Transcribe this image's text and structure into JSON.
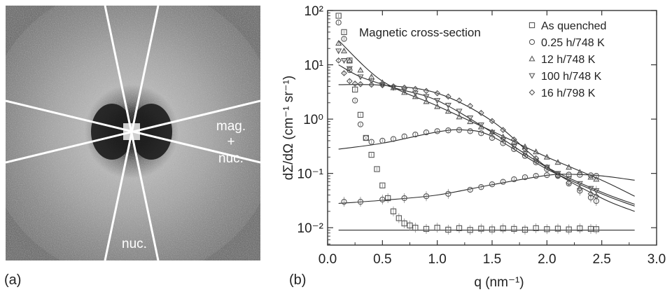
{
  "panel_a": {
    "label": "(a)",
    "sector_labels": {
      "mag_nuc_1": "mag.",
      "mag_nuc_2": "+",
      "mag_nuc_3": "nuc.",
      "nuc": "nuc."
    }
  },
  "panel_b": {
    "label": "(b)"
  },
  "chart_data": [
    {
      "type": "scatter",
      "panel": "b",
      "title": "Magnetic cross-section",
      "xlabel": "q (nm⁻¹)",
      "ylabel": "dΣ/dΩ (cm⁻¹ sr⁻¹)",
      "xlim": [
        0.0,
        3.0
      ],
      "ylim": [
        0.005,
        100
      ],
      "yscale": "log",
      "xticks": [
        "0.0",
        "0.5",
        "1.0",
        "1.5",
        "2.0",
        "2.5",
        "3.0"
      ],
      "yticks": [
        "10⁻²",
        "10⁻¹",
        "10⁰",
        "10¹",
        "10²"
      ],
      "legend_position": "top-right",
      "series": [
        {
          "name": "As quenched",
          "marker": "square",
          "points": [
            [
              0.1,
              80
            ],
            [
              0.15,
              40
            ],
            [
              0.2,
              12
            ],
            [
              0.25,
              3.5
            ],
            [
              0.3,
              1.2
            ],
            [
              0.35,
              0.45
            ],
            [
              0.4,
              0.22
            ],
            [
              0.45,
              0.12
            ],
            [
              0.5,
              0.06
            ],
            [
              0.55,
              0.035
            ],
            [
              0.6,
              0.02
            ],
            [
              0.65,
              0.015
            ],
            [
              0.7,
              0.012
            ],
            [
              0.75,
              0.011
            ],
            [
              0.8,
              0.01
            ],
            [
              0.9,
              0.0095
            ],
            [
              1.0,
              0.01
            ],
            [
              1.1,
              0.0092
            ],
            [
              1.2,
              0.0098
            ],
            [
              1.3,
              0.0091
            ],
            [
              1.4,
              0.0096
            ],
            [
              1.5,
              0.0093
            ],
            [
              1.6,
              0.0097
            ],
            [
              1.7,
              0.0095
            ],
            [
              1.8,
              0.0092
            ],
            [
              1.9,
              0.0098
            ],
            [
              2.0,
              0.0094
            ],
            [
              2.1,
              0.0096
            ],
            [
              2.2,
              0.0093
            ],
            [
              2.3,
              0.0097
            ],
            [
              2.4,
              0.0095
            ],
            [
              2.45,
              0.0094
            ]
          ],
          "fit": [
            [
              0.1,
              0.009
            ],
            [
              2.8,
              0.009
            ]
          ]
        },
        {
          "name": "0.25 h/748 K",
          "marker": "circle",
          "points": [
            [
              0.1,
              60
            ],
            [
              0.15,
              30
            ],
            [
              0.2,
              8
            ],
            [
              0.25,
              2.2
            ],
            [
              0.3,
              0.8
            ],
            [
              0.35,
              0.45
            ],
            [
              0.4,
              0.38
            ],
            [
              0.5,
              0.4
            ],
            [
              0.6,
              0.43
            ],
            [
              0.7,
              0.48
            ],
            [
              0.8,
              0.52
            ],
            [
              0.9,
              0.57
            ],
            [
              1.0,
              0.6
            ],
            [
              1.1,
              0.62
            ],
            [
              1.2,
              0.63
            ],
            [
              1.3,
              0.6
            ],
            [
              1.4,
              0.55
            ],
            [
              1.5,
              0.45
            ],
            [
              1.6,
              0.36
            ],
            [
              1.7,
              0.28
            ],
            [
              1.8,
              0.21
            ],
            [
              1.9,
              0.16
            ],
            [
              2.0,
              0.12
            ],
            [
              2.1,
              0.09
            ],
            [
              2.2,
              0.065
            ],
            [
              2.3,
              0.048
            ],
            [
              2.4,
              0.036
            ],
            [
              2.45,
              0.031
            ]
          ],
          "fit": [
            [
              0.1,
              0.28
            ],
            [
              0.5,
              0.36
            ],
            [
              1.0,
              0.58
            ],
            [
              1.25,
              0.63
            ],
            [
              1.5,
              0.48
            ],
            [
              2.0,
              0.12
            ],
            [
              2.5,
              0.042
            ],
            [
              2.8,
              0.025
            ]
          ]
        },
        {
          "name": "12 h/748 K",
          "marker": "triangle-up",
          "points": [
            [
              0.1,
              25
            ],
            [
              0.15,
              18
            ],
            [
              0.2,
              12
            ],
            [
              0.3,
              8
            ],
            [
              0.4,
              6
            ],
            [
              0.5,
              4.7
            ],
            [
              0.6,
              3.8
            ],
            [
              0.7,
              3.1
            ],
            [
              0.8,
              2.6
            ],
            [
              0.9,
              2.1
            ],
            [
              1.0,
              1.7
            ],
            [
              1.1,
              1.4
            ],
            [
              1.2,
              1.1
            ],
            [
              1.3,
              0.9
            ],
            [
              1.4,
              0.72
            ],
            [
              1.5,
              0.58
            ],
            [
              1.6,
              0.47
            ],
            [
              1.7,
              0.38
            ],
            [
              1.8,
              0.31
            ],
            [
              1.9,
              0.25
            ],
            [
              2.0,
              0.2
            ],
            [
              2.1,
              0.16
            ],
            [
              2.2,
              0.13
            ],
            [
              2.3,
              0.105
            ],
            [
              2.4,
              0.085
            ],
            [
              2.45,
              0.078
            ]
          ],
          "fit": [
            [
              0.1,
              28
            ],
            [
              0.5,
              5
            ],
            [
              1.0,
              1.75
            ],
            [
              1.5,
              0.6
            ],
            [
              2.0,
              0.2
            ],
            [
              2.5,
              0.075
            ],
            [
              2.8,
              0.038
            ]
          ]
        },
        {
          "name": "100 h/748 K",
          "marker": "triangle-down",
          "points": [
            [
              0.1,
              18
            ],
            [
              0.15,
              12
            ],
            [
              0.2,
              8.5
            ],
            [
              0.3,
              6
            ],
            [
              0.4,
              5
            ],
            [
              0.5,
              4.3
            ],
            [
              0.6,
              3.8
            ],
            [
              0.7,
              3.4
            ],
            [
              0.8,
              3.0
            ],
            [
              0.9,
              2.6
            ],
            [
              1.0,
              2.2
            ],
            [
              1.1,
              1.8
            ],
            [
              1.2,
              1.4
            ],
            [
              1.3,
              1.05
            ],
            [
              1.4,
              0.78
            ],
            [
              1.5,
              0.57
            ],
            [
              1.6,
              0.42
            ],
            [
              1.7,
              0.31
            ],
            [
              1.8,
              0.23
            ],
            [
              1.9,
              0.17
            ],
            [
              2.0,
              0.13
            ],
            [
              2.1,
              0.1
            ],
            [
              2.2,
              0.08
            ],
            [
              2.3,
              0.065
            ],
            [
              2.4,
              0.053
            ],
            [
              2.45,
              0.048
            ]
          ],
          "fit": [
            [
              0.1,
              10
            ],
            [
              0.3,
              6
            ],
            [
              0.6,
              3.8
            ],
            [
              1.0,
              2.2
            ],
            [
              1.5,
              0.57
            ],
            [
              2.0,
              0.13
            ],
            [
              2.5,
              0.045
            ],
            [
              2.8,
              0.027
            ]
          ]
        },
        {
          "name": "16 h/798 K",
          "marker": "diamond",
          "points": [
            [
              0.1,
              12
            ],
            [
              0.15,
              7
            ],
            [
              0.2,
              5
            ],
            [
              0.25,
              4.5
            ],
            [
              0.3,
              4.4
            ],
            [
              0.4,
              4.3
            ],
            [
              0.5,
              4.2
            ],
            [
              0.6,
              4.0
            ],
            [
              0.7,
              3.8
            ],
            [
              0.8,
              3.6
            ],
            [
              0.9,
              3.3
            ],
            [
              1.0,
              3.0
            ],
            [
              1.1,
              2.6
            ],
            [
              1.2,
              2.2
            ],
            [
              1.3,
              1.75
            ],
            [
              1.4,
              1.3
            ],
            [
              1.5,
              0.92
            ],
            [
              1.6,
              0.63
            ],
            [
              1.7,
              0.42
            ],
            [
              1.8,
              0.28
            ],
            [
              1.9,
              0.19
            ],
            [
              2.0,
              0.13
            ],
            [
              2.1,
              0.09
            ],
            [
              2.2,
              0.068
            ],
            [
              2.3,
              0.052
            ],
            [
              2.4,
              0.042
            ],
            [
              2.45,
              0.038
            ]
          ],
          "fit": [
            [
              0.1,
              4.3
            ],
            [
              0.5,
              4.2
            ],
            [
              1.0,
              3.0
            ],
            [
              1.5,
              0.92
            ],
            [
              2.0,
              0.13
            ],
            [
              2.5,
              0.035
            ],
            [
              2.8,
              0.02
            ]
          ]
        },
        {
          "name": "",
          "marker": "circle",
          "points": [
            [
              0.15,
              0.03
            ],
            [
              0.3,
              0.03
            ],
            [
              0.5,
              0.033
            ],
            [
              0.7,
              0.035
            ],
            [
              0.9,
              0.038
            ],
            [
              1.1,
              0.042
            ],
            [
              1.3,
              0.05
            ],
            [
              1.4,
              0.056
            ],
            [
              1.5,
              0.063
            ],
            [
              1.6,
              0.07
            ],
            [
              1.7,
              0.078
            ],
            [
              1.8,
              0.085
            ],
            [
              1.9,
              0.09
            ],
            [
              2.0,
              0.093
            ],
            [
              2.1,
              0.095
            ],
            [
              2.2,
              0.095
            ],
            [
              2.3,
              0.094
            ],
            [
              2.4,
              0.092
            ],
            [
              2.45,
              0.09
            ]
          ],
          "fit": [
            [
              0.1,
              0.028
            ],
            [
              0.5,
              0.032
            ],
            [
              1.0,
              0.04
            ],
            [
              1.5,
              0.062
            ],
            [
              2.0,
              0.092
            ],
            [
              2.25,
              0.096
            ],
            [
              2.5,
              0.09
            ],
            [
              2.8,
              0.075
            ]
          ]
        }
      ]
    }
  ]
}
